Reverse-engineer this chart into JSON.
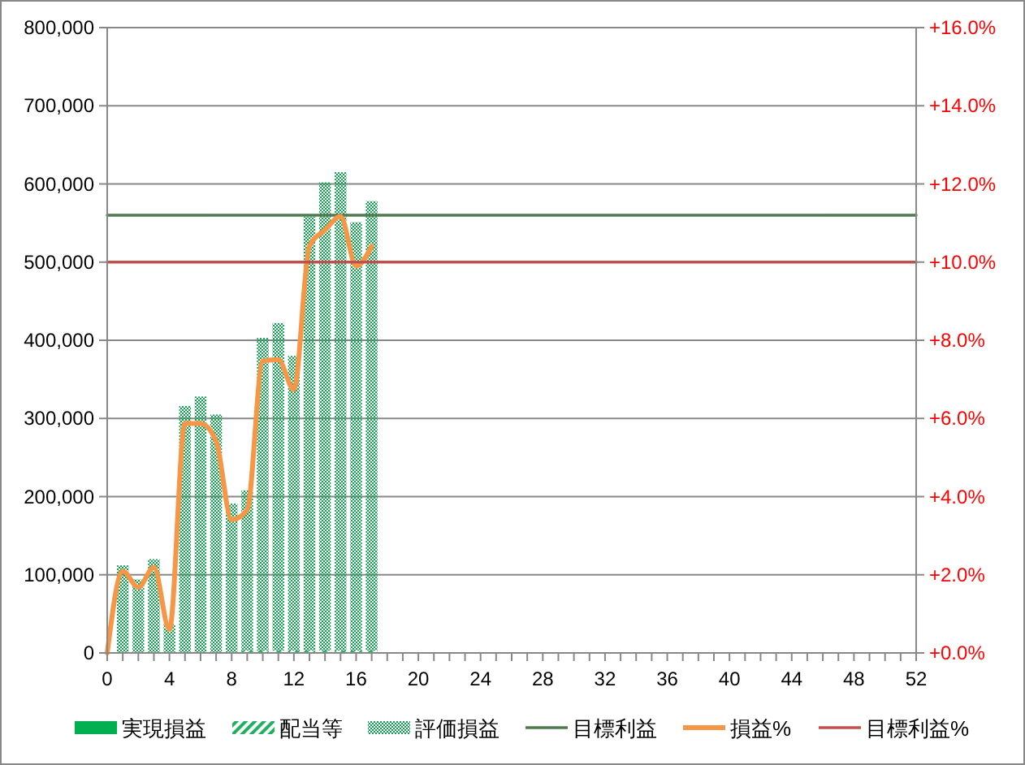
{
  "chart_data": {
    "type": "bar",
    "stacked": true,
    "x": [
      1,
      2,
      3,
      4,
      5,
      6,
      7,
      8,
      9,
      10,
      11,
      12,
      13,
      14,
      15,
      16,
      17
    ],
    "series": [
      {
        "name": "実現損益",
        "color": "#00b050",
        "values": [
          null,
          null,
          null,
          null,
          null,
          null,
          null,
          null,
          null,
          null,
          null,
          null,
          null,
          null,
          null,
          null,
          null
        ]
      },
      {
        "name": "配当等",
        "color": "#20b060",
        "values": [
          null,
          null,
          null,
          null,
          null,
          null,
          null,
          null,
          3000,
          3000,
          3000,
          3000,
          3000,
          3000,
          3000,
          3000,
          3000
        ]
      },
      {
        "name": "評価損益",
        "color": "#10a050",
        "values": [
          112000,
          94000,
          120000,
          37000,
          316000,
          328000,
          305000,
          191000,
          205000,
          400000,
          419000,
          377000,
          555000,
          599000,
          612000,
          548000,
          575000
        ]
      },
      {
        "name": "目標利益",
        "type": "line",
        "color": "#4f7a4f",
        "x": [
          0,
          52
        ],
        "values": [
          560000,
          560000
        ]
      },
      {
        "name": "損益%",
        "type": "line",
        "axis": "y2",
        "color": "#f79646",
        "x": [
          0,
          1,
          2,
          3,
          4,
          5,
          6,
          7,
          8,
          9,
          10,
          11,
          12,
          13,
          14,
          15,
          16,
          17
        ],
        "values": [
          0,
          2.09,
          1.68,
          2.19,
          0.6,
          5.87,
          5.87,
          5.42,
          3.41,
          3.66,
          7.47,
          7.5,
          6.74,
          10.41,
          10.82,
          11.17,
          9.9,
          10.4
        ]
      },
      {
        "name": "目標利益%",
        "type": "line",
        "axis": "y2",
        "color": "#c0504d",
        "x": [
          0,
          52
        ],
        "values": [
          10,
          10
        ]
      }
    ],
    "xlim": [
      0,
      52
    ],
    "xticks": [
      0,
      {
        "value": 1,
        "label": null
      },
      {
        "value": 2,
        "label": null
      },
      {
        "value": 3,
        "label": null
      },
      4,
      {
        "value": 5,
        "label": null
      },
      {
        "value": 6,
        "label": null
      },
      {
        "value": 7,
        "label": null
      },
      8,
      {
        "value": 9,
        "label": null
      },
      {
        "value": 10,
        "label": null
      },
      {
        "value": 11,
        "label": null
      },
      12,
      {
        "value": 13,
        "label": null
      },
      {
        "value": 14,
        "label": null
      },
      {
        "value": 15,
        "label": null
      },
      16,
      {
        "value": 17,
        "label": null
      },
      {
        "value": 18,
        "label": null
      },
      {
        "value": 19,
        "label": null
      },
      20,
      {
        "value": 21,
        "label": null
      },
      {
        "value": 22,
        "label": null
      },
      {
        "value": 23,
        "label": null
      },
      24,
      {
        "value": 25,
        "label": null
      },
      {
        "value": 26,
        "label": null
      },
      {
        "value": 27,
        "label": null
      },
      28,
      {
        "value": 29,
        "label": null
      },
      {
        "value": 30,
        "label": null
      },
      {
        "value": 31,
        "label": null
      },
      32,
      {
        "value": 33,
        "label": null
      },
      {
        "value": 34,
        "label": null
      },
      {
        "value": 35,
        "label": null
      },
      36,
      {
        "value": 37,
        "label": null
      },
      {
        "value": 38,
        "label": null
      },
      {
        "value": 39,
        "label": null
      },
      40,
      {
        "value": 41,
        "label": null
      },
      {
        "value": 42,
        "label": null
      },
      {
        "value": 43,
        "label": null
      },
      44,
      {
        "value": 45,
        "label": null
      },
      {
        "value": 46,
        "label": null
      },
      {
        "value": 47,
        "label": null
      },
      48,
      {
        "value": 49,
        "label": null
      },
      {
        "value": 50,
        "label": null
      },
      {
        "value": 51,
        "label": null
      },
      52
    ],
    "ylim": [
      0,
      800000
    ],
    "yticks": [
      0,
      {
        "value": 100000,
        "label": "100,000"
      },
      {
        "value": 200000,
        "label": "200,000"
      },
      {
        "value": 300000,
        "label": "300,000"
      },
      {
        "value": 400000,
        "label": "400,000"
      },
      {
        "value": 500000,
        "label": "500,000"
      },
      {
        "value": 600000,
        "label": "600,000"
      },
      {
        "value": 700000,
        "label": "700,000"
      },
      {
        "value": 800000,
        "label": "800,000"
      }
    ],
    "y2lim": [
      0,
      16
    ],
    "y2ticks": [
      {
        "value": 0,
        "label": "+0.0%"
      },
      {
        "value": 2,
        "label": "+2.0%"
      },
      {
        "value": 4,
        "label": "+4.0%"
      },
      {
        "value": 6,
        "label": "+6.0%"
      },
      {
        "value": 8,
        "label": "+8.0%"
      },
      {
        "value": 10,
        "label": "+10.0%"
      },
      {
        "value": 12,
        "label": "+12.0%"
      },
      {
        "value": 14,
        "label": "+14.0%"
      },
      {
        "value": 16,
        "label": "+16.0%"
      }
    ],
    "grid": "y",
    "legend": "bottom",
    "marker": "none"
  }
}
